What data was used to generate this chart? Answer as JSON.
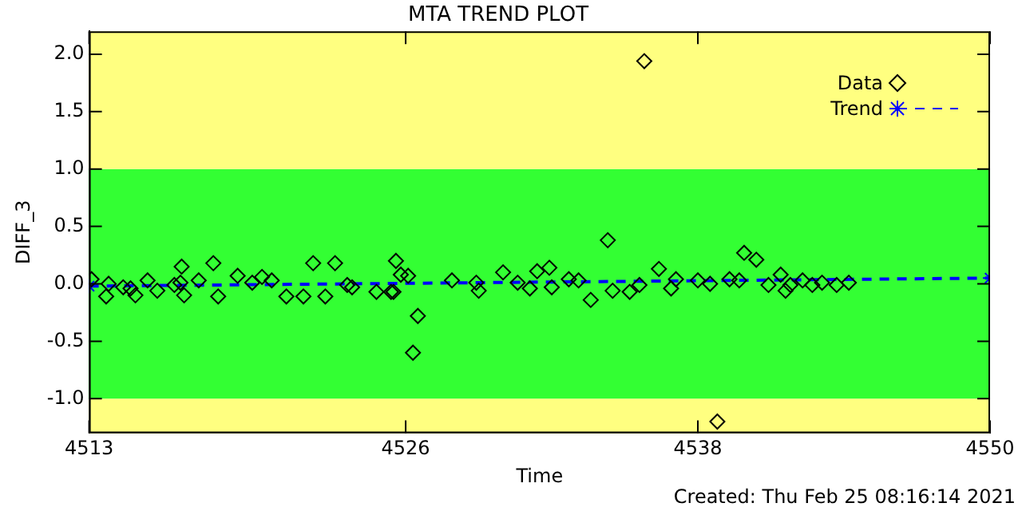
{
  "chart_data": {
    "type": "scatter",
    "title": "MTA TREND PLOT",
    "xlabel": "Time",
    "ylabel": "DIFF_3",
    "xlim": [
      4513,
      4550
    ],
    "xticks": [
      4513,
      4526,
      4538,
      4550
    ],
    "ylim": [
      -1.3,
      2.2
    ],
    "yticks": [
      {
        "value": -1,
        "label": "-1.0"
      },
      {
        "value": -0.5,
        "label": "-0.5"
      },
      {
        "value": 0,
        "label": "0.0"
      },
      {
        "value": 0.5,
        "label": "0.5"
      },
      {
        "value": 1,
        "label": "1.0"
      },
      {
        "value": 1.5,
        "label": "1.5"
      },
      {
        "value": 2,
        "label": "2.0"
      }
    ],
    "bands": [
      {
        "axis": "y",
        "from": -1.3,
        "to": -1,
        "color": "#ffff80"
      },
      {
        "axis": "y",
        "from": -1,
        "to": 1,
        "color": "#33ff33"
      },
      {
        "axis": "y",
        "from": 1,
        "to": 2.2,
        "color": "#ffff80"
      }
    ],
    "legend": "top right",
    "grid": false,
    "series": [
      {
        "name": "Data",
        "marker": "diamond",
        "color": "#000000",
        "x": [
          4513.1,
          4513.8,
          4513.7,
          4514.4,
          4514.7,
          4514.9,
          4515.4,
          4515.8,
          4516.5,
          4516.8,
          4516.75,
          4516.9,
          4517.5,
          4518.1,
          4518.3,
          4519.1,
          4519.7,
          4520.1,
          4520.5,
          4521.1,
          4521.8,
          4522.2,
          4522.7,
          4523.1,
          4523.6,
          4523.8,
          4524.8,
          4525.4,
          4525.6,
          4525.8,
          4526.1,
          4525.5,
          4526.5,
          4526.3,
          4527.9,
          4529.0,
          4528.9,
          4530.0,
          4530.6,
          4531.1,
          4531.4,
          4531.9,
          4532.0,
          4532.7,
          4533.1,
          4533.6,
          4534.3,
          4534.5,
          4535.2,
          4535.6,
          4535.8,
          4536.4,
          4536.9,
          4537.1,
          4538.0,
          4538.5,
          4538.8,
          4539.3,
          4539.7,
          4539.9,
          4540.4,
          4540.9,
          4541.4,
          4541.6,
          4541.8,
          4542.3,
          4542.7,
          4543.1,
          4543.7,
          4544.2
        ],
        "values": [
          0.04,
          0,
          -0.11,
          -0.03,
          -0.04,
          -0.1,
          0.03,
          -0.06,
          -0.01,
          0.15,
          0.01,
          -0.1,
          0.03,
          0.18,
          -0.11,
          0.07,
          0.01,
          0.06,
          0.03,
          -0.11,
          -0.11,
          0.18,
          -0.11,
          0.18,
          -0.01,
          -0.03,
          -0.07,
          -0.07,
          0.2,
          0.08,
          0.07,
          -0.07,
          -0.28,
          -0.6,
          0.03,
          -0.06,
          0.01,
          0.1,
          0.01,
          -0.04,
          0.11,
          0.14,
          -0.03,
          0.04,
          0.03,
          -0.14,
          0.38,
          -0.06,
          -0.07,
          -0.01,
          1.94,
          0.13,
          -0.04,
          0.04,
          0.03,
          0,
          -1.2,
          0.04,
          0.03,
          0.27,
          0.21,
          -0.01,
          0.08,
          -0.06,
          -0.01,
          0.03,
          -0.01,
          0.01,
          -0.01,
          0.01
        ]
      },
      {
        "name": "Trend",
        "type": "line",
        "marker": "cross",
        "line_style": "dashed",
        "color": "#0000ff",
        "x": [
          4513,
          4550
        ],
        "values": [
          -0.02,
          0.05
        ]
      }
    ],
    "annotations": [
      "Created: Thu Feb 25 08:16:14 2021"
    ]
  }
}
